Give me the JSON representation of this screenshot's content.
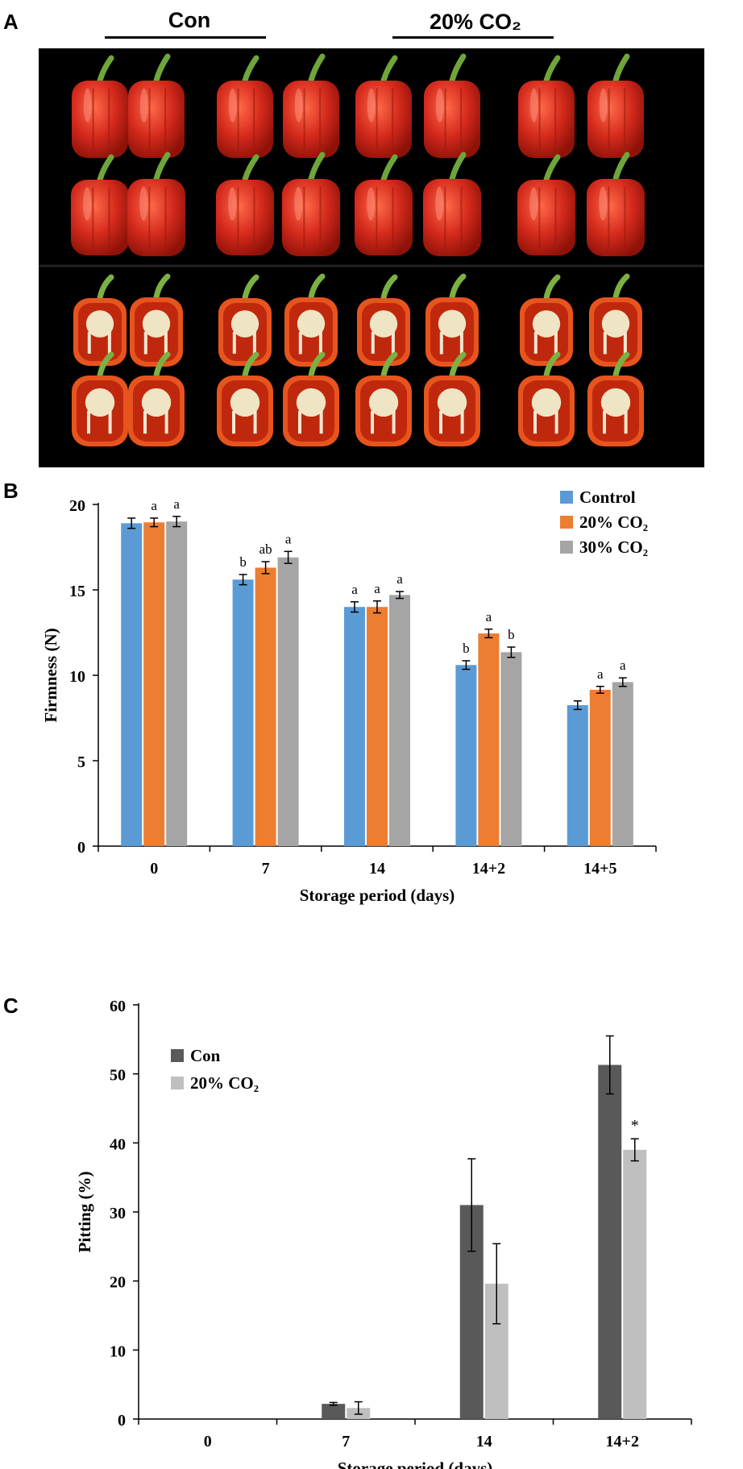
{
  "panel_labels": {
    "a": "A",
    "b": "B",
    "c": "C"
  },
  "panel_a": {
    "group_labels": [
      "Con",
      "20% CO₂"
    ],
    "pepper_color": "#d42a1c",
    "background_color": "#000000"
  },
  "colors": {
    "control": "#5b9bd5",
    "co2_20": "#ed7d31",
    "co2_30": "#a5a5a5",
    "con_dark": "#595959",
    "co2_light": "#bfbfbf"
  },
  "chart_data": [
    {
      "id": "firmness",
      "type": "bar",
      "title": "",
      "xlabel": "Storage period  (days)",
      "ylabel": "Firmness  (N)",
      "ylim": [
        0,
        20
      ],
      "yticks": [
        0,
        5,
        10,
        15,
        20
      ],
      "categories": [
        "0",
        "7",
        "14",
        "14+2",
        "14+5"
      ],
      "legend_position": "top-right",
      "series": [
        {
          "name": "Control",
          "color_key": "control",
          "values": [
            18.9,
            15.6,
            14.0,
            10.6,
            8.25
          ],
          "errors": [
            0.3,
            0.3,
            0.3,
            0.25,
            0.25
          ],
          "letters": [
            "",
            "b",
            "a",
            "b",
            ""
          ]
        },
        {
          "name": "20% CO₂",
          "color_key": "co2_20",
          "values": [
            18.95,
            16.3,
            14.0,
            12.45,
            9.15
          ],
          "errors": [
            0.25,
            0.35,
            0.35,
            0.25,
            0.2
          ],
          "letters": [
            "a",
            "ab",
            "a",
            "a",
            "a"
          ]
        },
        {
          "name": "30% CO₂",
          "color_key": "co2_30",
          "values": [
            19.0,
            16.9,
            14.7,
            11.35,
            9.6
          ],
          "errors": [
            0.3,
            0.35,
            0.2,
            0.3,
            0.25
          ],
          "letters": [
            "a",
            "a",
            "a",
            "b",
            "a"
          ]
        }
      ]
    },
    {
      "id": "pitting",
      "type": "bar",
      "title": "",
      "xlabel": "Storage period  (days)",
      "ylabel": "Pitting  (%)",
      "ylim": [
        0,
        60
      ],
      "yticks": [
        0,
        10,
        20,
        30,
        40,
        50,
        60
      ],
      "categories": [
        "0",
        "7",
        "14",
        "14+2"
      ],
      "legend_position": "top-left",
      "series": [
        {
          "name": "Con",
          "color_key": "con_dark",
          "values": [
            0,
            2.2,
            31.0,
            51.3
          ],
          "errors": [
            0,
            0.2,
            6.7,
            4.2
          ],
          "letters": [
            "",
            "",
            "",
            ""
          ]
        },
        {
          "name": "20% CO₂",
          "color_key": "co2_light",
          "values": [
            0,
            1.6,
            19.6,
            39.0
          ],
          "errors": [
            0,
            0.9,
            5.8,
            1.6
          ],
          "letters": [
            "",
            "",
            "",
            "*"
          ]
        }
      ]
    }
  ]
}
